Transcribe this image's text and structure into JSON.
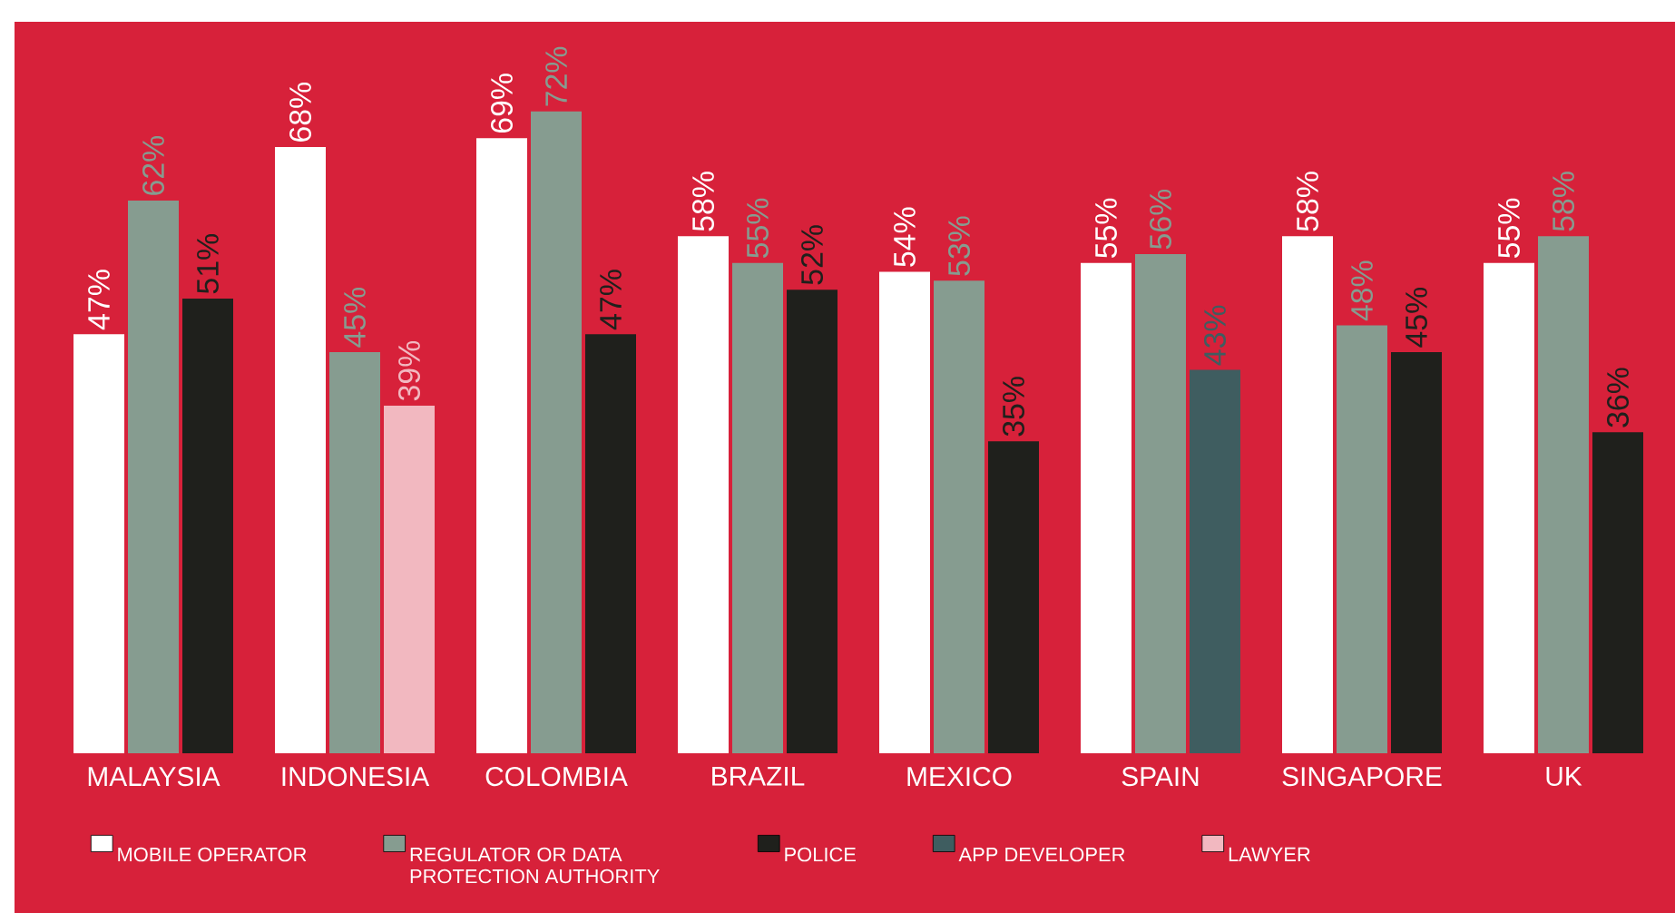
{
  "chart_data": {
    "type": "bar",
    "categories": [
      "MALAYSIA",
      "INDONESIA",
      "COLOMBIA",
      "BRAZIL",
      "MEXICO",
      "SPAIN",
      "SINGAPORE",
      "UK"
    ],
    "series": [
      {
        "name": "MOBILE OPERATOR",
        "color": "#ffffff",
        "values": [
          47,
          68,
          69,
          58,
          54,
          55,
          58,
          55
        ],
        "value_labels": [
          "47%",
          "68%",
          "69%",
          "58%",
          "54%",
          "55%",
          "58%",
          "55%"
        ]
      },
      {
        "name": "REGULATOR OR DATA PROTECTION AUTHORITY",
        "color": "#869c90",
        "values": [
          62,
          45,
          72,
          55,
          53,
          56,
          48,
          58
        ],
        "value_labels": [
          "62%",
          "45%",
          "72%",
          "55%",
          "53%",
          "56%",
          "48%",
          "58%"
        ]
      },
      {
        "name": "POLICE",
        "color": "#1f201c",
        "values": [
          51,
          null,
          47,
          52,
          35,
          null,
          45,
          36
        ],
        "value_labels": [
          "51%",
          null,
          "47%",
          "52%",
          "35%",
          null,
          "45%",
          "36%"
        ]
      },
      {
        "name": "APP DEVELOPER",
        "color": "#3f5d60",
        "values": [
          null,
          null,
          null,
          null,
          null,
          43,
          null,
          null
        ],
        "value_labels": [
          null,
          null,
          null,
          null,
          null,
          "43%",
          null,
          null
        ]
      },
      {
        "name": "LAWYER",
        "color": "#f2b8c0",
        "values": [
          null,
          39,
          null,
          null,
          null,
          null,
          null,
          null
        ],
        "value_labels": [
          null,
          "39%",
          null,
          null,
          null,
          null,
          null,
          null
        ]
      }
    ],
    "legend": "bottom"
  }
}
